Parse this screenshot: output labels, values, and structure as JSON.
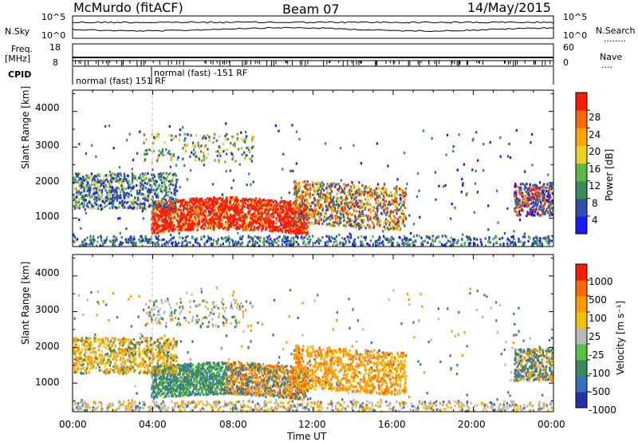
{
  "header": {
    "station": "McMurdo (fitACF)",
    "beam": "Beam 07",
    "date": "14/May/2015"
  },
  "left_labels": {
    "nsky": "N.Sky",
    "freq": "Freq.",
    "freq_unit": "[MHz]",
    "cpid": "CPID",
    "nsky_ticks": [
      "10^5",
      "10^0"
    ],
    "freq_ticks": [
      "18",
      "8"
    ]
  },
  "right_labels": {
    "nsearch": "N.Search",
    "nsearch_dots": "........",
    "nave": "Nave",
    "nave_dots": "....",
    "nsearch_ticks": [
      "10^5",
      "10^0"
    ],
    "nave_ticks": [
      "60",
      "0"
    ]
  },
  "cpid_text": {
    "mode1": "normal (fast) 151 RF",
    "mode2": "normal (fast) -151 RF"
  },
  "colors": {
    "power": [
      "#1a1aff",
      "#2e4fb0",
      "#3a8a5a",
      "#58b84a",
      "#e6d22a",
      "#ffa500",
      "#ff6a00",
      "#ff1a00"
    ],
    "velocity": [
      "#2233aa",
      "#3a6fc0",
      "#3a8a5a",
      "#58c040",
      "#b8b8b8",
      "#f2c200",
      "#ff9a00",
      "#ff6a00",
      "#ff1a00"
    ]
  },
  "chart_data": [
    {
      "type": "heatmap",
      "name": "power",
      "ylabel": "Slant Range [km]",
      "xlabel": "Time UT",
      "x_ticks": [
        "00:00",
        "04:00",
        "08:00",
        "12:00",
        "16:00",
        "20:00",
        "00:00"
      ],
      "y_ticks": [
        "1000",
        "2000",
        "3000",
        "4000"
      ],
      "ylim": [
        200,
        4600
      ],
      "xlim_hours": [
        0,
        24
      ],
      "colorbar": {
        "label": "Power [dB]",
        "ticks": [
          "4",
          "8",
          "12",
          "16",
          "20",
          "24",
          "28"
        ]
      }
    },
    {
      "type": "heatmap",
      "name": "velocity",
      "ylabel": "Slant Range [km]",
      "xlabel": "Time UT",
      "x_ticks": [
        "00:00",
        "04:00",
        "08:00",
        "12:00",
        "16:00",
        "20:00",
        "00:00"
      ],
      "y_ticks": [
        "1000",
        "2000",
        "3000",
        "4000"
      ],
      "ylim": [
        200,
        4600
      ],
      "xlim_hours": [
        0,
        24
      ],
      "colorbar": {
        "label": "Velocity [m s⁻¹]",
        "ticks": [
          "1000",
          "500",
          "100",
          "25",
          "-25",
          "-100",
          "-500",
          "-1000"
        ]
      }
    }
  ]
}
